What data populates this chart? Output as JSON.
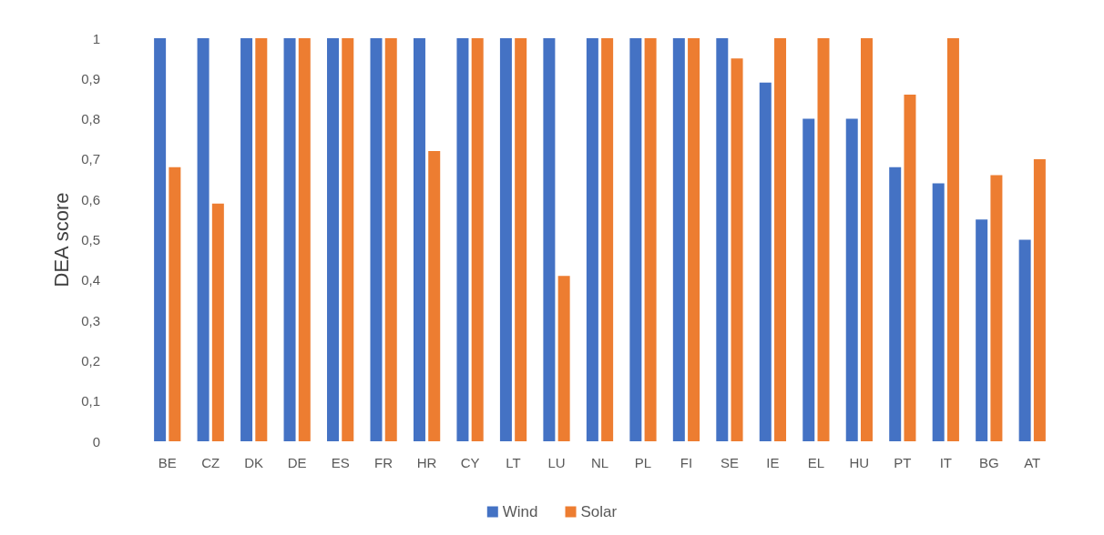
{
  "chart_data": {
    "type": "bar",
    "ylabel": "DEA score",
    "categories": [
      "BE",
      "CZ",
      "DK",
      "DE",
      "ES",
      "FR",
      "HR",
      "CY",
      "LT",
      "LU",
      "NL",
      "PL",
      "FI",
      "SE",
      "IE",
      "EL",
      "HU",
      "PT",
      "IT",
      "BG",
      "AT"
    ],
    "series": [
      {
        "name": "Wind",
        "color": "#4472c4",
        "values": [
          1,
          1,
          1,
          1,
          1,
          1,
          1,
          1,
          1,
          1,
          1,
          1,
          1,
          1,
          0.89,
          0.8,
          0.8,
          0.68,
          0.64,
          0.55,
          0.5
        ]
      },
      {
        "name": "Solar",
        "color": "#ed7d31",
        "values": [
          0.68,
          0.59,
          1,
          1,
          1,
          1,
          0.72,
          1,
          1,
          0.41,
          1,
          1,
          1,
          0.95,
          1,
          1,
          1,
          0.86,
          1,
          0.66,
          0.7
        ]
      }
    ],
    "ylim": [
      0,
      1
    ],
    "yticks": [
      0,
      {
        "value": 0.1,
        "label": "0,1"
      },
      {
        "value": 0.2,
        "label": "0,2"
      },
      {
        "value": 0.3,
        "label": "0,3"
      },
      {
        "value": 0.4,
        "label": "0,4"
      },
      {
        "value": 0.5,
        "label": "0,5"
      },
      {
        "value": 0.6,
        "label": "0,6"
      },
      {
        "value": 0.7,
        "label": "0,7"
      },
      {
        "value": 0.8,
        "label": "0,8"
      },
      {
        "value": 0.9,
        "label": "0,9"
      },
      1
    ],
    "grid": false,
    "legend": "bottom"
  }
}
